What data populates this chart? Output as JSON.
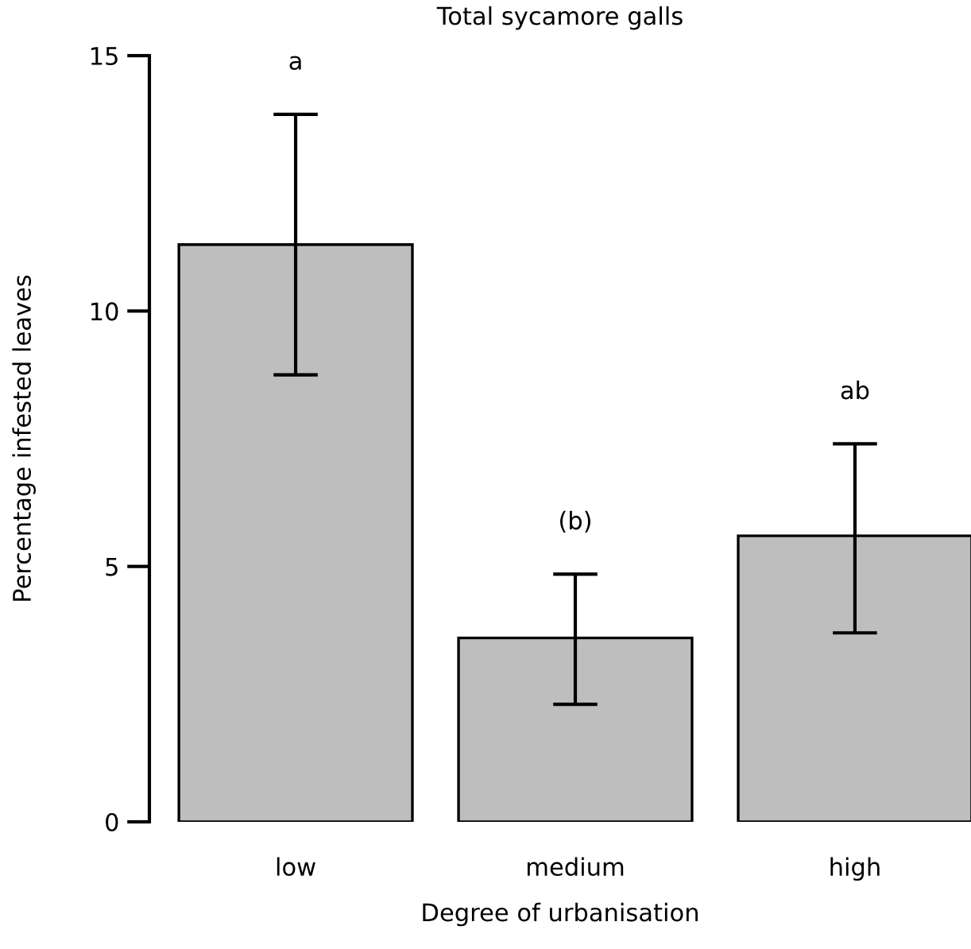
{
  "chart_data": {
    "type": "bar",
    "title": "Total sycamore galls",
    "xlabel": "Degree of urbanisation",
    "ylabel": "Percentage infested leaves",
    "categories": [
      "low",
      "medium",
      "high"
    ],
    "values": [
      11.3,
      3.6,
      5.6
    ],
    "errors": [
      [
        8.75,
        13.85
      ],
      [
        2.3,
        4.85
      ],
      [
        3.7,
        7.4
      ]
    ],
    "color": "#bebebe",
    "ylim": [
      0,
      15
    ],
    "yticks": [
      0,
      5,
      10,
      15
    ],
    "grid": false,
    "annotations": [
      "a",
      "(b)",
      "ab"
    ]
  }
}
